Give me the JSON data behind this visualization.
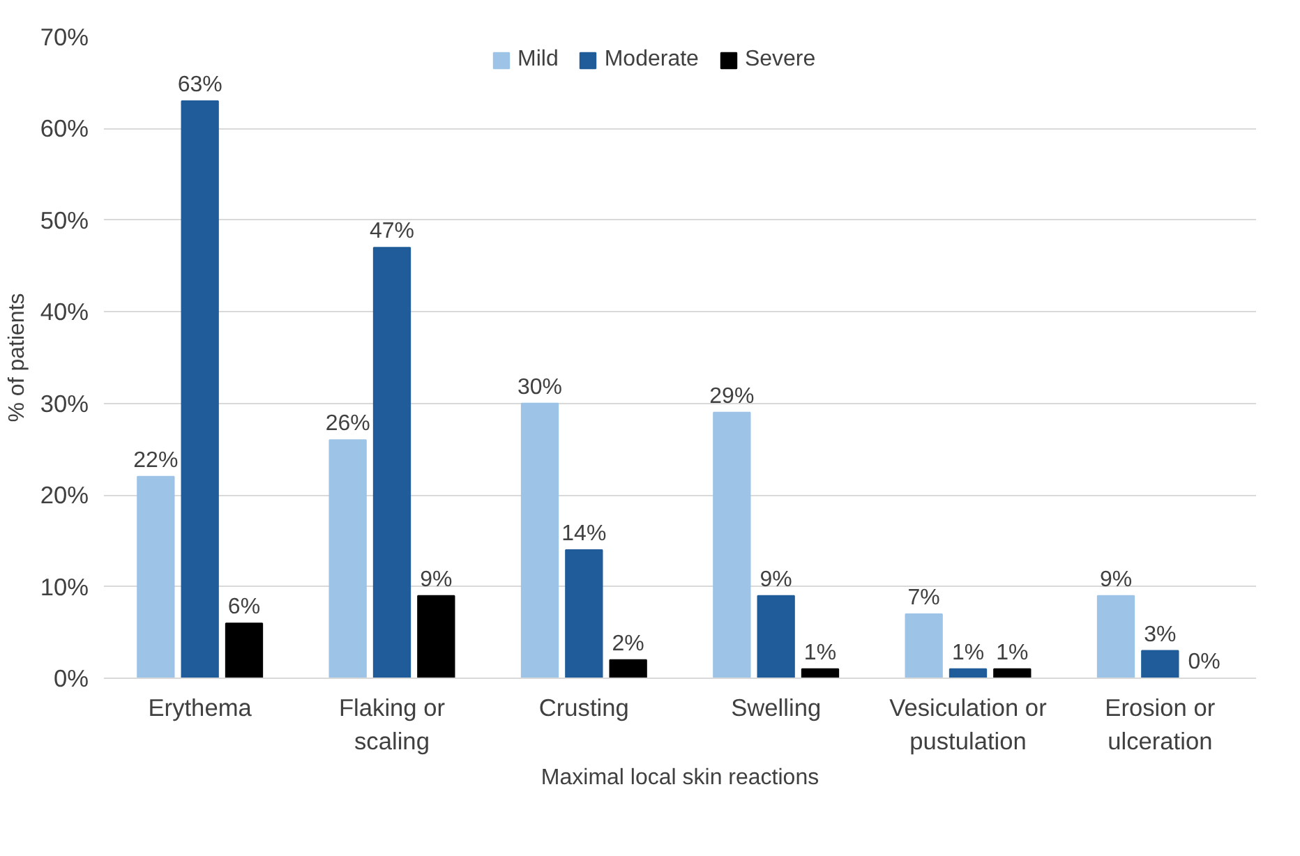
{
  "chart_data": {
    "type": "bar",
    "xlabel": "Maximal local skin reactions",
    "ylabel": "% of patients",
    "categories": [
      "Erythema",
      "Flaking or scaling",
      "Crusting",
      "Swelling",
      "Vesiculation or pustulation",
      "Erosion or ulceration"
    ],
    "series": [
      {
        "name": "Mild",
        "color": "#9dc3e6",
        "values": [
          22,
          26,
          30,
          29,
          7,
          9
        ],
        "value_labels": [
          "22%",
          "26%",
          "30%",
          "29%",
          "7%",
          "9%"
        ]
      },
      {
        "name": "Moderate",
        "color": "#1f5c99",
        "values": [
          63,
          47,
          14,
          9,
          1,
          3
        ],
        "value_labels": [
          "63%",
          "47%",
          "14%",
          "9%",
          "1%",
          "3%"
        ]
      },
      {
        "name": "Severe",
        "color": "#000000",
        "values": [
          6,
          9,
          2,
          1,
          1,
          0
        ],
        "value_labels": [
          "6%",
          "9%",
          "2%",
          "1%",
          "1%",
          "0%"
        ]
      }
    ],
    "ylim": [
      0,
      70
    ],
    "yticks": [
      {
        "value": 0,
        "label": "0%"
      },
      {
        "value": 10,
        "label": "10%"
      },
      {
        "value": 20,
        "label": "20%"
      },
      {
        "value": 30,
        "label": "30%"
      },
      {
        "value": 40,
        "label": "40%"
      },
      {
        "value": 50,
        "label": "50%"
      },
      {
        "value": 60,
        "label": "60%"
      },
      {
        "value": 70,
        "label": "70%"
      }
    ],
    "grid": "y",
    "legend": "top"
  }
}
